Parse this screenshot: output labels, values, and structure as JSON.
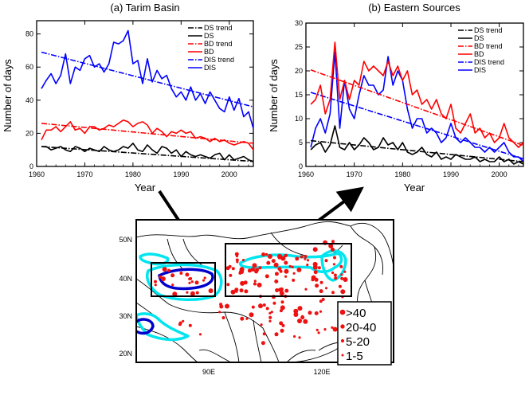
{
  "colors": {
    "ds": "#000000",
    "bd": "#ff0000",
    "dis": "#0000ff",
    "contour_light": "#00e5ee",
    "contour_dark": "#0000cc",
    "station": "#ee1111"
  },
  "chart_data": [
    {
      "type": "line",
      "title": "(a) Tarim Basin",
      "xlabel": "Year",
      "ylabel": "Number of days",
      "xlim": [
        1960,
        2005
      ],
      "ylim": [
        0,
        88
      ],
      "xticks": [
        "1960",
        "1970",
        "1980",
        "1990",
        "2000"
      ],
      "yticks": [
        "0",
        "20",
        "40",
        "60",
        "80"
      ],
      "legend_position": "top-right",
      "legend": [
        "DS trend",
        "DS",
        "BD trend",
        "BD",
        "DIS trend",
        "DIS"
      ],
      "x": [
        1961,
        1962,
        1963,
        1964,
        1965,
        1966,
        1967,
        1968,
        1969,
        1970,
        1971,
        1972,
        1973,
        1974,
        1975,
        1976,
        1977,
        1978,
        1979,
        1980,
        1981,
        1982,
        1983,
        1984,
        1985,
        1986,
        1987,
        1988,
        1989,
        1990,
        1991,
        1992,
        1993,
        1994,
        1995,
        1996,
        1997,
        1998,
        1999,
        2000,
        2001,
        2002,
        2003,
        2004,
        2005
      ],
      "series": [
        {
          "name": "DS",
          "color": "#000000",
          "values": [
            12,
            12,
            10,
            11,
            12,
            10,
            9,
            12,
            11,
            9,
            11,
            10,
            9,
            12,
            10,
            9,
            10,
            12,
            11,
            14,
            10,
            9,
            13,
            10,
            8,
            12,
            11,
            8,
            10,
            6,
            9,
            7,
            6,
            7,
            6,
            5,
            7,
            8,
            4,
            7,
            4,
            5,
            6,
            4,
            3
          ]
        },
        {
          "name": "BD",
          "color": "#ff0000",
          "values": [
            16,
            22,
            22,
            24,
            21,
            24,
            27,
            22,
            23,
            20,
            24,
            24,
            22,
            23,
            25,
            24,
            26,
            28,
            27,
            24,
            26,
            27,
            25,
            20,
            23,
            21,
            18,
            21,
            20,
            22,
            20,
            21,
            17,
            18,
            17,
            15,
            17,
            15,
            16,
            14,
            13,
            14,
            15,
            14,
            10
          ]
        },
        {
          "name": "DIS",
          "color": "#0000ff",
          "values": [
            47,
            52,
            56,
            50,
            55,
            68,
            50,
            60,
            58,
            65,
            67,
            60,
            62,
            57,
            62,
            75,
            74,
            76,
            82,
            62,
            64,
            50,
            65,
            51,
            58,
            53,
            55,
            47,
            42,
            45,
            40,
            48,
            40,
            44,
            38,
            45,
            40,
            35,
            33,
            42,
            34,
            41,
            30,
            33,
            23
          ]
        }
      ],
      "trends": [
        {
          "name": "DS trend",
          "color": "#000000",
          "from": [
            1961,
            12
          ],
          "to": [
            2005,
            3
          ]
        },
        {
          "name": "BD trend",
          "color": "#ff0000",
          "from": [
            1961,
            26
          ],
          "to": [
            2005,
            14
          ]
        },
        {
          "name": "DIS trend",
          "color": "#0000ff",
          "from": [
            1961,
            69
          ],
          "to": [
            2005,
            36
          ]
        }
      ]
    },
    {
      "type": "line",
      "title": "(b) Eastern Sources",
      "xlabel": "Year",
      "ylabel": "Number of days",
      "xlim": [
        1960,
        2005
      ],
      "ylim": [
        0,
        30
      ],
      "xticks": [
        "1960",
        "1970",
        "1980",
        "1990",
        "2000"
      ],
      "yticks": [
        "0",
        "5",
        "10",
        "15",
        "20",
        "25",
        "30"
      ],
      "legend_position": "top-right",
      "legend": [
        "DS trend",
        "DS",
        "BD trend",
        "BD",
        "DIS trend",
        "DIS"
      ],
      "x": [
        1961,
        1962,
        1963,
        1964,
        1965,
        1966,
        1967,
        1968,
        1969,
        1970,
        1971,
        1972,
        1973,
        1974,
        1975,
        1976,
        1977,
        1978,
        1979,
        1980,
        1981,
        1982,
        1983,
        1984,
        1985,
        1986,
        1987,
        1988,
        1989,
        1990,
        1991,
        1992,
        1993,
        1994,
        1995,
        1996,
        1997,
        1998,
        1999,
        2000,
        2001,
        2002,
        2003,
        2004,
        2005
      ],
      "series": [
        {
          "name": "DS",
          "color": "#000000",
          "values": [
            3.5,
            4.5,
            5,
            3,
            4.5,
            8.5,
            4,
            3.5,
            5,
            3.5,
            4.5,
            6,
            5,
            3.5,
            4,
            6,
            4.5,
            5,
            3.5,
            5,
            3,
            2.5,
            3,
            4,
            2.5,
            2,
            3,
            1.5,
            2,
            1.5,
            2.5,
            2,
            1.5,
            1.5,
            2,
            1,
            1.5,
            1,
            1,
            2,
            1,
            1.5,
            0.5,
            1,
            0.5
          ]
        },
        {
          "name": "BD",
          "color": "#ff0000",
          "values": [
            13,
            14,
            17,
            11,
            14,
            26,
            14,
            18,
            14,
            18,
            17,
            22,
            20,
            21,
            20,
            19,
            22,
            19,
            21,
            18,
            20,
            15,
            16,
            13,
            14,
            12,
            14,
            11,
            10,
            13,
            8,
            7,
            9,
            11,
            7,
            8,
            6,
            7,
            5,
            6,
            9,
            6,
            5,
            4,
            5
          ]
        },
        {
          "name": "DIS",
          "color": "#0000ff",
          "values": [
            4,
            8,
            10,
            7,
            11,
            24,
            8,
            18,
            12,
            10,
            15,
            19,
            17,
            17,
            15,
            16,
            23,
            17,
            20,
            18,
            12,
            8,
            10,
            10,
            7,
            8,
            7,
            5,
            6,
            9,
            6,
            5,
            6,
            5,
            4,
            4,
            3,
            4,
            3,
            4,
            5,
            3,
            2,
            2,
            1
          ]
        }
      ],
      "trends": [
        {
          "name": "DS trend",
          "color": "#000000",
          "from": [
            1961,
            5.4
          ],
          "to": [
            2005,
            1.0
          ]
        },
        {
          "name": "BD trend",
          "color": "#ff0000",
          "from": [
            1961,
            20.2
          ],
          "to": [
            2005,
            4.4
          ]
        },
        {
          "name": "DIS trend",
          "color": "#0000ff",
          "from": [
            1961,
            15.5
          ],
          "to": [
            2005,
            1.6
          ]
        }
      ]
    }
  ],
  "map": {
    "lat_labels": [
      "50N",
      "40N",
      "30N",
      "20N"
    ],
    "lon_labels": [
      "90E",
      "120E"
    ],
    "legend_title": "",
    "legend": [
      ">40",
      "20-40",
      "5-20",
      "1-5"
    ]
  }
}
